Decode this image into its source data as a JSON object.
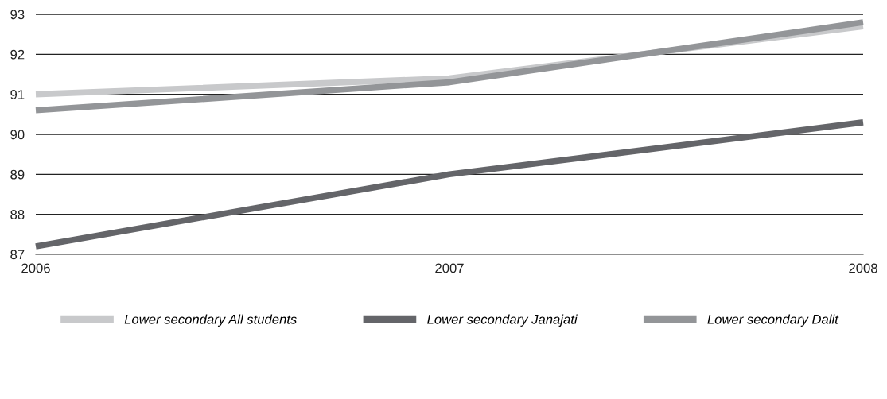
{
  "chart_data": {
    "type": "line",
    "x": [
      2006,
      2007,
      2008
    ],
    "series": [
      {
        "name": "Lower secondary All students",
        "color": "#c8c9cb",
        "values": [
          91.0,
          91.4,
          92.7
        ]
      },
      {
        "name": "Lower secondary Janajati",
        "color": "#646569",
        "values": [
          87.2,
          89.0,
          90.3
        ]
      },
      {
        "name": "Lower secondary Dalit",
        "color": "#939598",
        "values": [
          90.6,
          91.3,
          92.8
        ]
      }
    ],
    "xlim": [
      2006,
      2008
    ],
    "xticks": [
      2006,
      2007,
      2008
    ],
    "ylim": [
      87,
      93
    ],
    "yticks": [
      87,
      88,
      89,
      90,
      91,
      92,
      93
    ],
    "grid": "y",
    "legend": "bottom",
    "marker": "none",
    "line_style": "solid"
  }
}
